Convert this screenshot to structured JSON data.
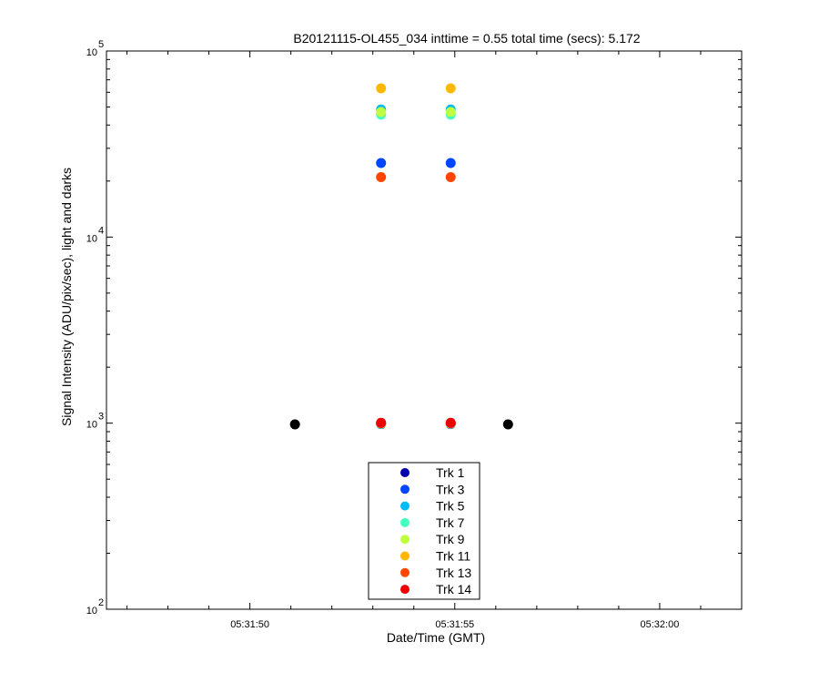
{
  "chart_data": {
    "type": "scatter",
    "title": "B20121115-OL455_034 inttime = 0.55 total time (secs): 5.172",
    "xlabel": "Date/Time (GMT)",
    "ylabel": "Signal Intensity (ADU/pix/sec), light and darks",
    "y_scale": "log",
    "ylim": [
      100,
      100000
    ],
    "xlim": [
      "05:31:46.5",
      "05:32:02.0"
    ],
    "x_ticks": [
      "05:31:50",
      "05:31:55",
      "05:32:00"
    ],
    "y_ticks": [
      {
        "value": 100,
        "base": "10",
        "exp": "2"
      },
      {
        "value": 1000,
        "base": "10",
        "exp": "3"
      },
      {
        "value": 10000,
        "base": "10",
        "exp": "4"
      },
      {
        "value": 100000,
        "base": "10",
        "exp": "5"
      }
    ],
    "legend_position": "bottom-center",
    "series": [
      {
        "name": "Trk 1",
        "color": "#0000a8",
        "points": [
          {
            "x": "05:31:53.2",
            "y": 990
          },
          {
            "x": "05:31:54.9",
            "y": 990
          }
        ]
      },
      {
        "name": "Trk 3",
        "color": "#0045ff",
        "points": [
          {
            "x": "05:31:53.2",
            "y": 25000
          },
          {
            "x": "05:31:54.9",
            "y": 25000
          },
          {
            "x": "05:31:53.2",
            "y": 990
          },
          {
            "x": "05:31:54.9",
            "y": 990
          }
        ]
      },
      {
        "name": "Trk 5",
        "color": "#00bcf0",
        "points": [
          {
            "x": "05:31:53.2",
            "y": 48500
          },
          {
            "x": "05:31:54.9",
            "y": 48500
          },
          {
            "x": "05:31:53.2",
            "y": 995
          },
          {
            "x": "05:31:54.9",
            "y": 995
          }
        ]
      },
      {
        "name": "Trk 7",
        "color": "#45ffc0",
        "points": [
          {
            "x": "05:31:53.2",
            "y": 45500
          },
          {
            "x": "05:31:54.9",
            "y": 45500
          },
          {
            "x": "05:31:53.2",
            "y": 995
          },
          {
            "x": "05:31:54.9",
            "y": 995
          }
        ]
      },
      {
        "name": "Trk 9",
        "color": "#c0ff3f",
        "points": [
          {
            "x": "05:31:53.2",
            "y": 47000
          },
          {
            "x": "05:31:54.9",
            "y": 47000
          },
          {
            "x": "05:31:53.2",
            "y": 995
          },
          {
            "x": "05:31:54.9",
            "y": 995
          }
        ]
      },
      {
        "name": "Trk 11",
        "color": "#ffb800",
        "points": [
          {
            "x": "05:31:53.2",
            "y": 63000
          },
          {
            "x": "05:31:54.9",
            "y": 63000
          },
          {
            "x": "05:31:53.2",
            "y": 1000
          },
          {
            "x": "05:31:54.9",
            "y": 1000
          }
        ]
      },
      {
        "name": "Trk 13",
        "color": "#ff4500",
        "points": [
          {
            "x": "05:31:53.2",
            "y": 21000
          },
          {
            "x": "05:31:54.9",
            "y": 21000
          },
          {
            "x": "05:31:53.2",
            "y": 1000
          },
          {
            "x": "05:31:54.9",
            "y": 1000
          }
        ]
      },
      {
        "name": "Trk 14",
        "color": "#ee0000",
        "points": [
          {
            "x": "05:31:53.2",
            "y": 1005
          },
          {
            "x": "05:31:54.9",
            "y": 1005
          }
        ]
      }
    ],
    "darks": {
      "color": "#000000",
      "points": [
        {
          "x": "05:31:51.1",
          "y": 985
        },
        {
          "x": "05:31:56.3",
          "y": 985
        }
      ]
    }
  }
}
